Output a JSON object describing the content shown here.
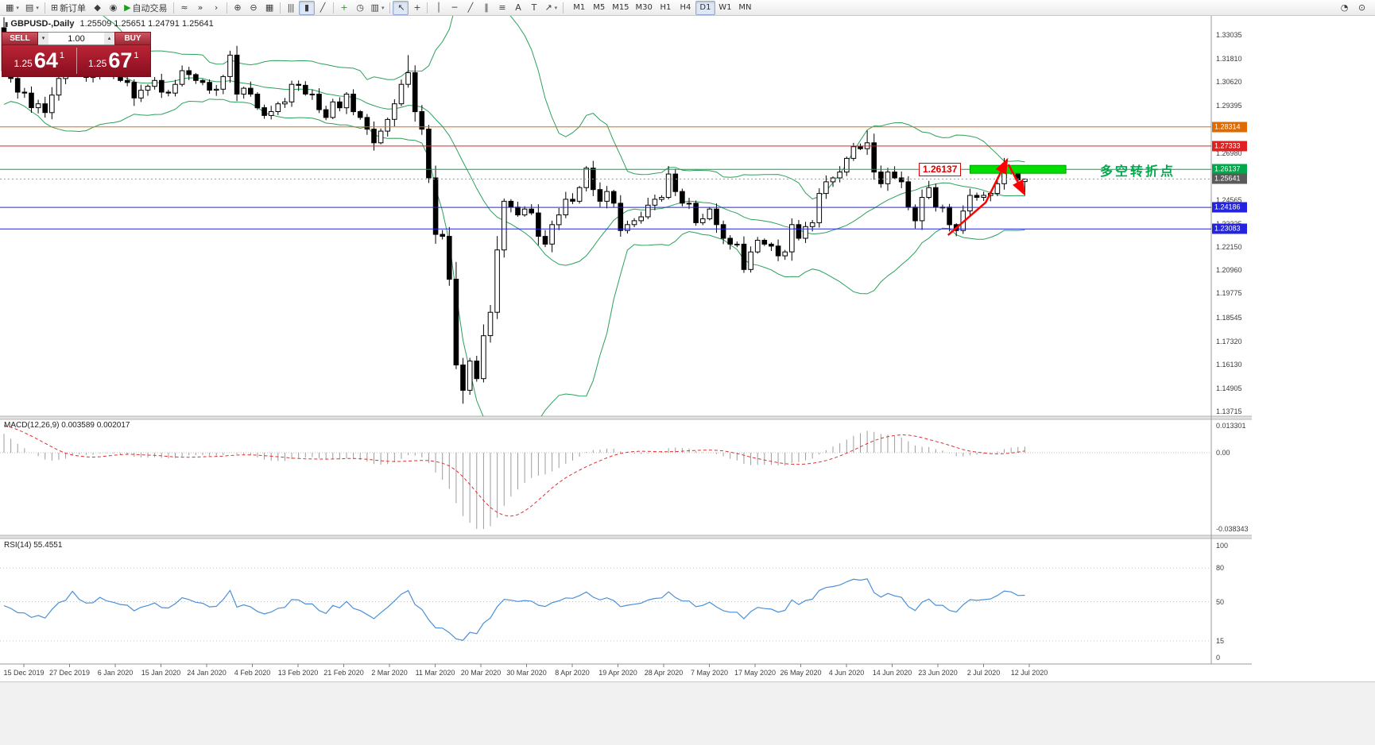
{
  "toolbar": {
    "items": [
      {
        "name": "new-chart",
        "glyph": "▦",
        "caret": true
      },
      {
        "name": "profiles",
        "glyph": "▤",
        "caret": true
      },
      {
        "sep": true
      },
      {
        "name": "new-order",
        "glyph": "⊞",
        "label": "新订单"
      },
      {
        "name": "metaeditor",
        "glyph": "◆"
      },
      {
        "name": "alerts",
        "glyph": "◉"
      },
      {
        "name": "autotrading",
        "glyph": "▶",
        "label": "自动交易",
        "color": "#1d9f1d"
      },
      {
        "sep": true
      },
      {
        "name": "indicator-window",
        "glyph": "≈"
      },
      {
        "name": "auto-scroll",
        "glyph": "»"
      },
      {
        "name": "chart-shift",
        "glyph": "›"
      },
      {
        "sep": true
      },
      {
        "name": "zoom-in",
        "glyph": "⊕"
      },
      {
        "name": "zoom-out",
        "glyph": "⊖"
      },
      {
        "name": "tile-windows",
        "glyph": "▦"
      },
      {
        "sep": true
      },
      {
        "name": "bar-chart",
        "glyph": "|||"
      },
      {
        "name": "candlestick-chart",
        "glyph": "▮",
        "pressed": true
      },
      {
        "name": "line-chart",
        "glyph": "╱"
      },
      {
        "sep": true
      },
      {
        "name": "add-indicator",
        "glyph": "+",
        "color": "#1d9f1d"
      },
      {
        "name": "period",
        "glyph": "◷"
      },
      {
        "name": "templates",
        "glyph": "▥",
        "caret": true
      },
      {
        "sep": true
      },
      {
        "name": "cursor",
        "glyph": "↖",
        "pressed": true
      },
      {
        "name": "crosshair",
        "glyph": "+"
      },
      {
        "sep": true
      },
      {
        "name": "vertical-line",
        "glyph": "│"
      },
      {
        "name": "horizontal-line",
        "glyph": "─"
      },
      {
        "name": "trendline",
        "glyph": "╱"
      },
      {
        "name": "equidistant-channel",
        "glyph": "∥"
      },
      {
        "name": "fibonacci",
        "glyph": "≡"
      },
      {
        "name": "text",
        "glyph": "A"
      },
      {
        "name": "text-label",
        "glyph": "T"
      },
      {
        "name": "arrows",
        "glyph": "↗",
        "caret": true
      },
      {
        "sep": true
      }
    ],
    "timeframes": [
      "M1",
      "M5",
      "M15",
      "M30",
      "H1",
      "H4",
      "D1",
      "W1",
      "MN"
    ],
    "active_timeframe": "D1",
    "right_items": [
      {
        "name": "community",
        "glyph": "◔"
      },
      {
        "name": "search",
        "glyph": "⊙"
      }
    ]
  },
  "trade_panel": {
    "sell_label": "SELL",
    "buy_label": "BUY",
    "volume": "1.00",
    "sell_price": {
      "small": "1.25",
      "big": "64",
      "sup": "1"
    },
    "buy_price": {
      "small": "1.25",
      "big": "67",
      "sup": "1"
    }
  },
  "header": {
    "symbol": "GBPUSD-,Daily",
    "ohlc": "1.25509 1.25651 1.24791 1.25641"
  },
  "annotations": {
    "level_label": "1.26137",
    "zone_text": "多空转折点"
  },
  "panels": {
    "macd_label": "MACD(12,26,9) 0.003589 0.002017",
    "rsi_label": "RSI(14) 55.4551"
  },
  "chart_data": {
    "type": "candlestick",
    "symbol": "GBPUSD",
    "timeframe": "Daily",
    "last_ohlc": {
      "open": 1.25509,
      "high": 1.25651,
      "low": 1.24791,
      "close": 1.25641
    },
    "y_ticks": [
      "1.33035",
      "1.31810",
      "1.30620",
      "1.29395",
      "1.26980",
      "1.24565",
      "1.23325",
      "1.22150",
      "1.20960",
      "1.19775",
      "1.18545",
      "1.17320",
      "1.16130",
      "1.14905",
      "1.13715"
    ],
    "y_range": [
      1.13715,
      1.33035
    ],
    "levels": [
      {
        "price": 1.28314,
        "label": "1.28314",
        "color": "#e06a00"
      },
      {
        "price": 1.27333,
        "label": "1.27333",
        "color": "#e02020"
      },
      {
        "price": 1.26137,
        "label": "1.26137",
        "color": "#00a84a"
      },
      {
        "price": 1.25641,
        "label": "1.25641",
        "color": "#5a5a5a",
        "style": "bid"
      },
      {
        "price": 1.24186,
        "label": "1.24186",
        "color": "#2424e0"
      },
      {
        "price": 1.23083,
        "label": "1.23083",
        "color": "#2424e0"
      }
    ],
    "x_labels": [
      "15 Dec 2019",
      "27 Dec 2019",
      "6 Jan 2020",
      "15 Jan 2020",
      "24 Jan 2020",
      "4 Feb 2020",
      "13 Feb 2020",
      "21 Feb 2020",
      "2 Mar 2020",
      "11 Mar 2020",
      "20 Mar 2020",
      "30 Mar 2020",
      "8 Apr 2020",
      "19 Apr 2020",
      "28 Apr 2020",
      "7 May 2020",
      "17 May 2020",
      "26 May 2020",
      "4 Jun 2020",
      "14 Jun 2020",
      "23 Jun 2020",
      "2 Jul 2020",
      "12 Jul 2020"
    ],
    "warmup_closes": [
      1.285,
      1.287,
      1.29,
      1.288,
      1.284,
      1.286,
      1.291,
      1.293,
      1.29,
      1.294,
      1.298,
      1.3,
      1.305,
      1.31,
      1.306,
      1.308,
      1.312,
      1.316,
      1.32,
      1.326,
      1.332,
      1.34,
      1.348,
      1.3516,
      1.342,
      1.335,
      1.33,
      1.333,
      1.336,
      1.334
    ],
    "closes": [
      1.312,
      1.308,
      1.301,
      1.3005,
      1.293,
      1.295,
      1.2905,
      1.2995,
      1.308,
      1.311,
      1.325,
      1.314,
      1.3085,
      1.309,
      1.317,
      1.312,
      1.31,
      1.307,
      1.306,
      1.298,
      1.302,
      1.304,
      1.307,
      1.301,
      1.3005,
      1.305,
      1.312,
      1.31,
      1.307,
      1.306,
      1.302,
      1.3025,
      1.309,
      1.32,
      1.3,
      1.303,
      1.3,
      1.293,
      1.289,
      1.291,
      1.295,
      1.296,
      1.305,
      1.3045,
      1.3,
      1.3,
      1.292,
      1.288,
      1.296,
      1.293,
      1.3,
      1.291,
      1.288,
      1.282,
      1.275,
      1.281,
      1.287,
      1.295,
      1.305,
      1.311,
      1.291,
      1.282,
      1.257,
      1.228,
      1.227,
      1.205,
      1.161,
      1.148,
      1.163,
      1.154,
      1.176,
      1.188,
      1.22,
      1.245,
      1.242,
      1.238,
      1.241,
      1.239,
      1.227,
      1.223,
      1.233,
      1.238,
      1.246,
      1.245,
      1.252,
      1.262,
      1.251,
      1.245,
      1.25,
      1.244,
      1.23,
      1.233,
      1.235,
      1.237,
      1.243,
      1.246,
      1.247,
      1.259,
      1.25,
      1.244,
      1.244,
      1.234,
      1.236,
      1.241,
      1.233,
      1.226,
      1.223,
      1.223,
      1.21,
      1.219,
      1.225,
      1.223,
      1.222,
      1.217,
      1.219,
      1.233,
      1.226,
      1.232,
      1.234,
      1.249,
      1.255,
      1.257,
      1.26,
      1.267,
      1.273,
      1.272,
      1.275,
      1.26,
      1.254,
      1.26,
      1.257,
      1.255,
      1.242,
      1.235,
      1.247,
      1.252,
      1.242,
      1.242,
      1.233,
      1.23,
      1.24,
      1.248,
      1.247,
      1.248,
      1.249,
      1.254,
      1.261,
      1.26,
      1.256,
      1.2564
    ],
    "ohlc_overrides": {
      "10": [
        null,
        1.3285,
        null,
        null
      ],
      "59": [
        null,
        1.32,
        null,
        null
      ],
      "67": [
        null,
        null,
        1.1411,
        null
      ],
      "126": [
        null,
        1.2813,
        null,
        null
      ],
      "146": [
        null,
        1.2672,
        null,
        null
      ],
      "149": [
        1.25509,
        1.25651,
        1.24791,
        1.25641
      ]
    },
    "bollinger": {
      "period": 20,
      "deviation": 2,
      "color": "#2ca05a"
    },
    "macd": {
      "fast": 12,
      "slow": 26,
      "signal": 9,
      "axis_max": "0.013301",
      "axis_zero": "0.00",
      "axis_min": "-0.038343"
    },
    "rsi": {
      "period": 14,
      "value": "55.4551",
      "axis": [
        "100",
        "80",
        "50",
        "15",
        "0"
      ],
      "levels": [
        80,
        50,
        15
      ],
      "color": "#4a90d9"
    },
    "green_zone": {
      "i0": 141,
      "i1": 155,
      "price": 1.26137,
      "color": "#00dd00"
    },
    "arrow_up": [
      {
        "i": 137.8,
        "p": 1.2276
      },
      {
        "i": 143.3,
        "p": 1.2444
      },
      {
        "i": 146.3,
        "p": 1.2655
      }
    ],
    "arrow_down": [
      {
        "i": 146.6,
        "p": 1.2639
      },
      {
        "i": 148.8,
        "p": 1.2495
      }
    ]
  }
}
